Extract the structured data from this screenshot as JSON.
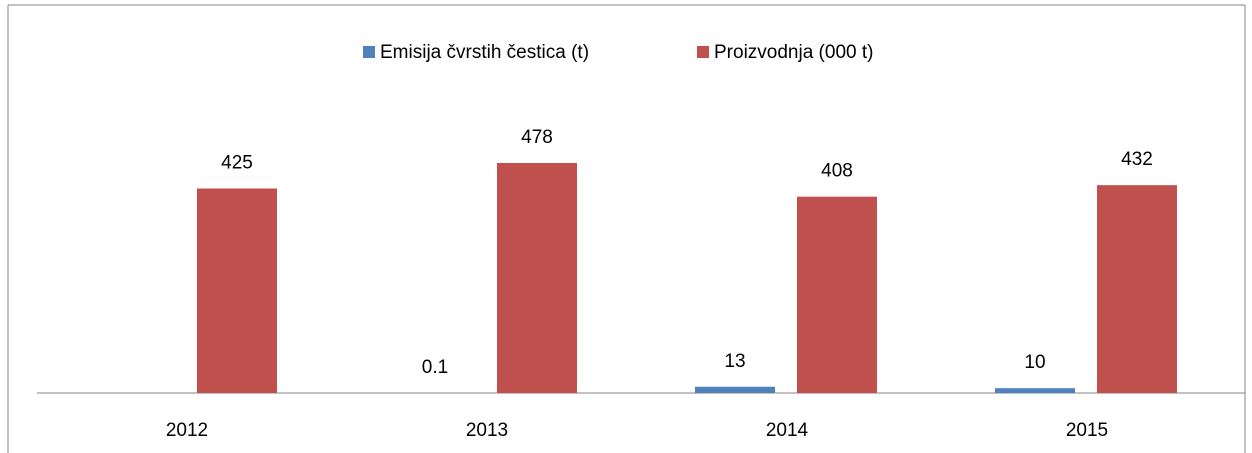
{
  "chart_data": {
    "type": "bar",
    "categories": [
      "2012",
      "2013",
      "2014",
      "2015"
    ],
    "series": [
      {
        "name": "Emisija čvrstih čestica (t)",
        "color": "#4f81bd",
        "values": [
          null,
          0.1,
          13,
          10
        ]
      },
      {
        "name": "Proizvodnja (000 t)",
        "color": "#c0504d",
        "values": [
          425,
          478,
          408,
          432
        ]
      }
    ],
    "legend": "top"
  }
}
